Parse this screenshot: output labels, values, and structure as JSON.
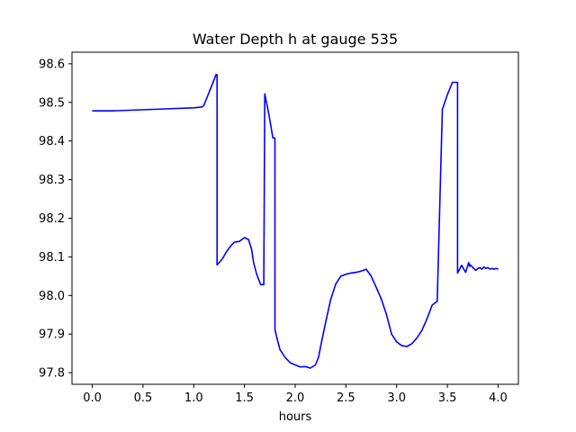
{
  "chart_data": {
    "type": "line",
    "title": "Water Depth h at gauge 535",
    "xlabel": "hours",
    "ylabel": "",
    "xlim": [
      -0.2,
      4.2
    ],
    "ylim": [
      97.77,
      98.63
    ],
    "x_ticks": [
      0.0,
      0.5,
      1.0,
      1.5,
      2.0,
      2.5,
      3.0,
      3.5,
      4.0
    ],
    "x_tick_labels": [
      "0.0",
      "0.5",
      "1.0",
      "1.5",
      "2.0",
      "2.5",
      "3.0",
      "3.5",
      "4.0"
    ],
    "y_ticks": [
      97.8,
      97.9,
      98.0,
      98.1,
      98.2,
      98.3,
      98.4,
      98.5,
      98.6
    ],
    "y_tick_labels": [
      "97.8",
      "97.9",
      "98.0",
      "98.1",
      "98.2",
      "98.3",
      "98.4",
      "98.5",
      "98.6"
    ],
    "grid": false,
    "series": [
      {
        "color": "#0000ff",
        "x": [
          0.0,
          0.2,
          0.6,
          1.0,
          1.08,
          1.1,
          1.22,
          1.23,
          1.23,
          1.28,
          1.32,
          1.36,
          1.4,
          1.45,
          1.5,
          1.54,
          1.57,
          1.59,
          1.62,
          1.66,
          1.69,
          1.7,
          1.7,
          1.74,
          1.78,
          1.8,
          1.8,
          1.82,
          1.85,
          1.9,
          1.95,
          2.0,
          2.05,
          2.1,
          2.15,
          2.2,
          2.23,
          2.26,
          2.3,
          2.35,
          2.4,
          2.45,
          2.5,
          2.55,
          2.6,
          2.65,
          2.7,
          2.75,
          2.8,
          2.85,
          2.9,
          2.95,
          3.0,
          3.05,
          3.1,
          3.15,
          3.2,
          3.25,
          3.3,
          3.35,
          3.4,
          3.45,
          3.5,
          3.55,
          3.6,
          3.6,
          3.64,
          3.68,
          3.71,
          3.72,
          3.72,
          3.74,
          3.76,
          3.78,
          3.8,
          3.82,
          3.84,
          3.86,
          3.88,
          3.9,
          3.92,
          3.94,
          3.96,
          3.98,
          4.0
        ],
        "y": [
          98.478,
          98.478,
          98.482,
          98.486,
          98.488,
          98.492,
          98.572,
          98.572,
          98.079,
          98.094,
          98.112,
          98.127,
          98.138,
          98.14,
          98.15,
          98.145,
          98.12,
          98.085,
          98.055,
          98.028,
          98.028,
          98.522,
          98.522,
          98.47,
          98.408,
          98.408,
          97.912,
          97.89,
          97.86,
          97.84,
          97.826,
          97.82,
          97.815,
          97.816,
          97.812,
          97.82,
          97.84,
          97.88,
          97.93,
          97.99,
          98.03,
          98.05,
          98.055,
          98.058,
          98.06,
          98.063,
          98.068,
          98.05,
          98.02,
          97.99,
          97.95,
          97.9,
          97.88,
          97.87,
          97.868,
          97.875,
          97.89,
          97.91,
          97.94,
          97.975,
          97.985,
          98.482,
          98.52,
          98.552,
          98.552,
          98.058,
          98.078,
          98.06,
          98.085,
          98.075,
          98.08,
          98.076,
          98.07,
          98.065,
          98.07,
          98.072,
          98.068,
          98.074,
          98.07,
          98.072,
          98.068,
          98.07,
          98.068,
          98.07,
          98.068
        ]
      }
    ]
  }
}
